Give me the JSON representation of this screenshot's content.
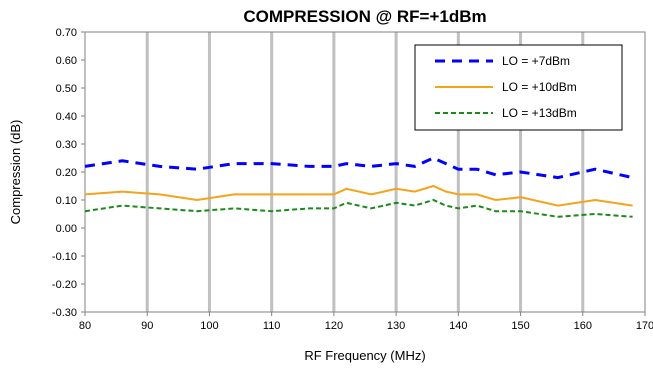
{
  "chart_data": {
    "type": "line",
    "title": "COMPRESSION @ RF=+1dBm",
    "xlabel": "RF Frequency (MHz)",
    "ylabel": "Compression (dB)",
    "xlim": [
      80,
      170
    ],
    "ylim": [
      -0.3,
      0.7
    ],
    "x_ticks": [
      "80",
      "90",
      "100",
      "110",
      "120",
      "130",
      "140",
      "150",
      "160",
      "170"
    ],
    "y_ticks": [
      "-0.30",
      "-0.20",
      "-0.10",
      "0.00",
      "0.10",
      "0.20",
      "0.30",
      "0.40",
      "0.50",
      "0.60",
      "0.70"
    ],
    "grid": "vertical",
    "legend_position": "top-right",
    "series": [
      {
        "name": "LO = +7dBm",
        "color": "#0000ff",
        "style": "dashed",
        "x": [
          80,
          86,
          92,
          98,
          104,
          110,
          116,
          120,
          122,
          126,
          130,
          133,
          136,
          138,
          140,
          143,
          146,
          150,
          156,
          162,
          168
        ],
        "y": [
          0.22,
          0.24,
          0.22,
          0.21,
          0.23,
          0.23,
          0.22,
          0.22,
          0.23,
          0.22,
          0.23,
          0.22,
          0.25,
          0.23,
          0.21,
          0.21,
          0.19,
          0.2,
          0.18,
          0.21,
          0.18
        ]
      },
      {
        "name": "LO = +10dBm",
        "color": "#f5a31a",
        "style": "solid",
        "x": [
          80,
          86,
          92,
          98,
          104,
          110,
          116,
          120,
          122,
          126,
          130,
          133,
          136,
          138,
          140,
          143,
          146,
          150,
          156,
          162,
          168
        ],
        "y": [
          0.12,
          0.13,
          0.12,
          0.1,
          0.12,
          0.12,
          0.12,
          0.12,
          0.14,
          0.12,
          0.14,
          0.13,
          0.15,
          0.13,
          0.12,
          0.12,
          0.1,
          0.11,
          0.08,
          0.1,
          0.08
        ]
      },
      {
        "name": "LO = +13dBm",
        "color": "#1a8a1a",
        "style": "dotted",
        "x": [
          80,
          86,
          92,
          98,
          104,
          110,
          116,
          120,
          122,
          126,
          130,
          133,
          136,
          138,
          140,
          143,
          146,
          150,
          156,
          162,
          168
        ],
        "y": [
          0.06,
          0.08,
          0.07,
          0.06,
          0.07,
          0.06,
          0.07,
          0.07,
          0.09,
          0.07,
          0.09,
          0.08,
          0.1,
          0.08,
          0.07,
          0.08,
          0.06,
          0.06,
          0.04,
          0.05,
          0.04
        ]
      }
    ]
  }
}
